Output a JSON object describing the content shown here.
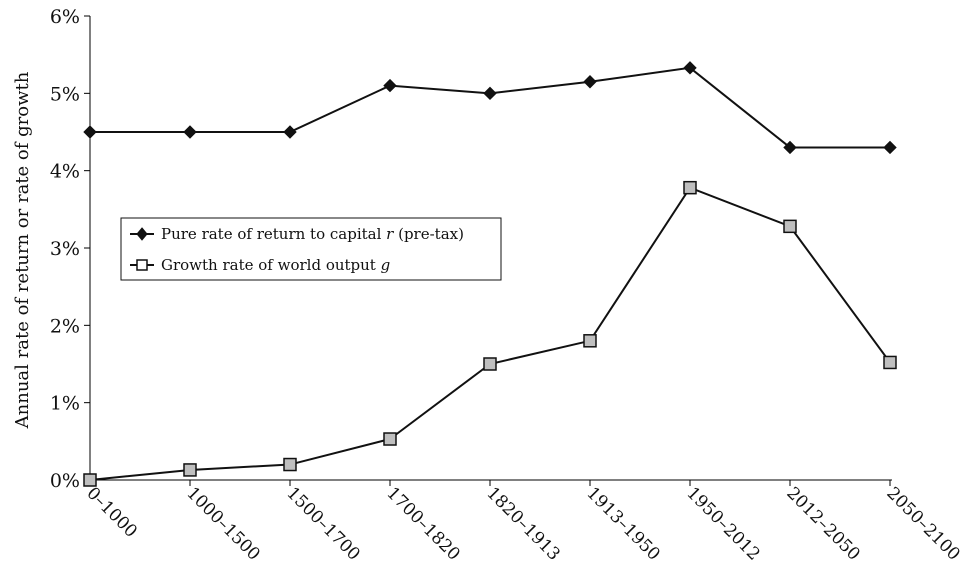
{
  "chart_data": {
    "type": "line",
    "categories": [
      "0–1000",
      "1000–1500",
      "1500–1700",
      "1700–1820",
      "1820–1913",
      "1913–1950",
      "1950–2012",
      "2012–2050",
      "2050–2100"
    ],
    "series": [
      {
        "name": "Pure rate of return to capital r (pre-tax)",
        "label_main": "Pure rate of return to capital ",
        "label_symbol": "r",
        "label_tail": " (pre-tax)",
        "marker": "filled-diamond",
        "values": [
          4.5,
          4.5,
          4.5,
          5.1,
          5.0,
          5.15,
          5.33,
          4.3,
          4.3
        ]
      },
      {
        "name": "Growth rate of world output g",
        "label_main": "Growth rate of world output ",
        "label_symbol": "g",
        "label_tail": "",
        "marker": "open-square",
        "values": [
          0.0,
          0.13,
          0.2,
          0.53,
          1.5,
          1.8,
          3.78,
          3.28,
          1.52
        ]
      }
    ],
    "y_ticks": [
      "0%",
      "1%",
      "2%",
      "3%",
      "4%",
      "5%",
      "6%"
    ],
    "ylim": [
      0,
      6
    ],
    "ylabel": "Annual rate of return or rate of growth",
    "xlabel": "",
    "title": "",
    "legend_position": "left-middle",
    "grid": false,
    "colors": {
      "line": "#111111",
      "square_fill": "#bfbfbf",
      "diamond_fill": "#111111"
    }
  }
}
